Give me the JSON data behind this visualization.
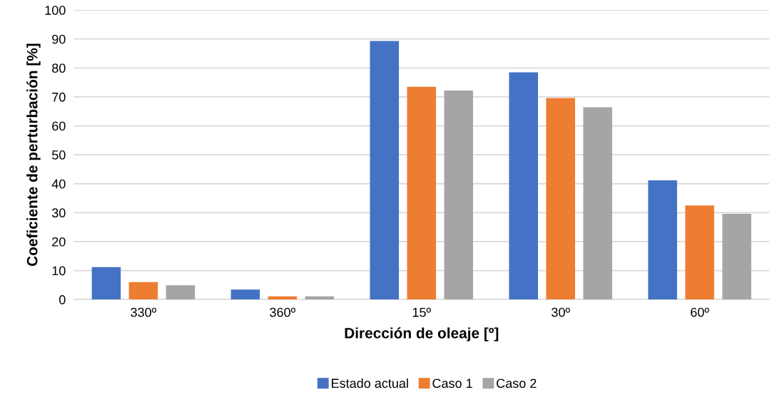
{
  "chart_data": {
    "type": "bar",
    "xlabel": "Dirección de oleaje [º]",
    "ylabel": "Coeficiente de perturbación [%]",
    "categories": [
      "330º",
      "360º",
      "15º",
      "30º",
      "60º"
    ],
    "series": [
      {
        "name": "Estado actual",
        "color": "#4472c4",
        "values": [
          11.2,
          3.4,
          89.3,
          78.5,
          41.2
        ]
      },
      {
        "name": "Caso 1",
        "color": "#ed7d31",
        "values": [
          6.0,
          1.1,
          73.5,
          69.6,
          32.5
        ]
      },
      {
        "name": "Caso 2",
        "color": "#a5a5a5",
        "values": [
          4.9,
          1.1,
          72.2,
          66.4,
          29.6
        ]
      }
    ],
    "ylim": [
      0,
      100
    ],
    "yticks": [
      0,
      10,
      20,
      30,
      40,
      50,
      60,
      70,
      80,
      90,
      100
    ],
    "grid": "y",
    "legend": "bottom"
  }
}
